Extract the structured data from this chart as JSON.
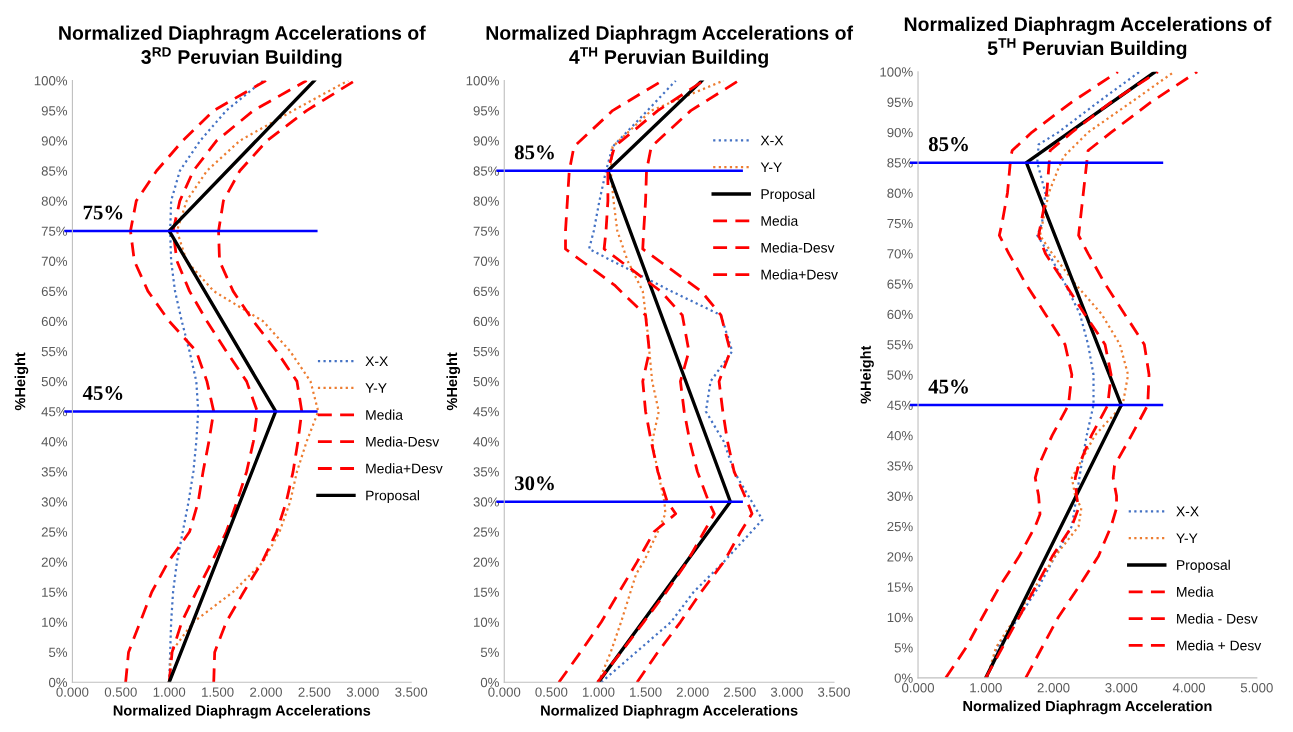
{
  "chart_data": [
    {
      "type": "line",
      "title": "Normalized Diaphragm Accelerations of\n3$^{RD}$ Peruvian Building",
      "xlabel": "Normalized Diaphragm Accelerations",
      "ylabel": "%Height",
      "xlim": [
        0,
        3.5
      ],
      "xticks": [
        {
          "value": 0,
          "label": "0.000"
        },
        {
          "value": 0.5,
          "label": "0.500"
        },
        {
          "value": 1,
          "label": "1.000"
        },
        {
          "value": 1.5,
          "label": "1.500"
        },
        {
          "value": 2,
          "label": "2.000"
        },
        {
          "value": 2.5,
          "label": "2.500"
        },
        {
          "value": 3,
          "label": "3.000"
        },
        {
          "value": 3.5,
          "label": "3.500"
        }
      ],
      "ylim": [
        0,
        100
      ],
      "yticks": [
        {
          "value": 0,
          "label": "0%"
        },
        {
          "value": 5,
          "label": "5%"
        },
        {
          "value": 10,
          "label": "10%"
        },
        {
          "value": 15,
          "label": "15%"
        },
        {
          "value": 20,
          "label": "20%"
        },
        {
          "value": 25,
          "label": "25%"
        },
        {
          "value": 30,
          "label": "30%"
        },
        {
          "value": 35,
          "label": "35%"
        },
        {
          "value": 40,
          "label": "40%"
        },
        {
          "value": 45,
          "label": "45%"
        },
        {
          "value": 50,
          "label": "50%"
        },
        {
          "value": 55,
          "label": "55%"
        },
        {
          "value": 60,
          "label": "60%"
        },
        {
          "value": 65,
          "label": "65%"
        },
        {
          "value": 70,
          "label": "70%"
        },
        {
          "value": 75,
          "label": "75%"
        },
        {
          "value": 80,
          "label": "80%"
        },
        {
          "value": 85,
          "label": "85%"
        },
        {
          "value": 90,
          "label": "90%"
        },
        {
          "value": 95,
          "label": "95%"
        },
        {
          "value": 100,
          "label": "100%"
        }
      ],
      "grid": false,
      "legend": "right",
      "series": [
        {
          "name": "X-X",
          "color": "#4472c4",
          "line_style": "dotted",
          "x": [
            1.0,
            1.01,
            1.02,
            1.04,
            1.08,
            1.14,
            1.2,
            1.25,
            1.28,
            1.3,
            1.28,
            1.21,
            1.13,
            1.06,
            1.02,
            1.01,
            1.02,
            1.11,
            1.32,
            1.59,
            1.97
          ],
          "values": [
            0,
            5,
            10,
            15,
            20,
            25,
            30,
            35,
            40,
            45,
            50,
            55,
            60,
            65,
            70,
            75,
            80,
            85,
            90,
            95,
            100
          ]
        },
        {
          "name": "Y-Y",
          "color": "#ed7d31",
          "line_style": "dotted",
          "x": [
            1.0,
            1.02,
            1.25,
            1.66,
            1.97,
            2.14,
            2.25,
            2.32,
            2.42,
            2.54,
            2.46,
            2.25,
            1.97,
            1.46,
            1.18,
            1.08,
            1.18,
            1.39,
            1.73,
            2.28,
            2.85
          ],
          "values": [
            0,
            5,
            10,
            15,
            20,
            25,
            30,
            35,
            40,
            45,
            50,
            55,
            60,
            65,
            70,
            75,
            80,
            85,
            90,
            95,
            100
          ]
        },
        {
          "name": "Media",
          "color": "#ff0000",
          "line_style": "dashed",
          "x": [
            1.0,
            1.03,
            1.13,
            1.28,
            1.44,
            1.59,
            1.7,
            1.8,
            1.87,
            1.91,
            1.8,
            1.59,
            1.39,
            1.21,
            1.08,
            1.04,
            1.11,
            1.25,
            1.49,
            1.87,
            2.42
          ],
          "values": [
            0,
            5,
            10,
            15,
            20,
            25,
            30,
            35,
            40,
            45,
            50,
            55,
            60,
            65,
            70,
            75,
            80,
            85,
            90,
            95,
            100
          ]
        },
        {
          "name": "Media-Desv",
          "color": "#ff0000",
          "line_style": "dashed",
          "x": [
            0.55,
            0.58,
            0.7,
            0.82,
            0.99,
            1.21,
            1.3,
            1.35,
            1.41,
            1.46,
            1.39,
            1.28,
            1.0,
            0.78,
            0.64,
            0.6,
            0.66,
            0.87,
            1.14,
            1.46,
            2.0
          ],
          "values": [
            0,
            5,
            10,
            15,
            20,
            25,
            30,
            35,
            40,
            45,
            50,
            55,
            60,
            65,
            70,
            75,
            80,
            85,
            90,
            95,
            100
          ]
        },
        {
          "name": "Media+Desv",
          "color": "#ff0000",
          "line_style": "dashed",
          "x": [
            1.46,
            1.47,
            1.59,
            1.77,
            1.96,
            2.11,
            2.21,
            2.28,
            2.33,
            2.37,
            2.32,
            2.11,
            1.87,
            1.66,
            1.52,
            1.51,
            1.56,
            1.73,
            2.01,
            2.42,
            2.92
          ],
          "values": [
            0,
            5,
            10,
            15,
            20,
            25,
            30,
            35,
            40,
            45,
            50,
            55,
            60,
            65,
            70,
            75,
            80,
            85,
            90,
            95,
            100
          ]
        },
        {
          "name": "Proposal",
          "color": "#000000",
          "line_style": "solid",
          "x": [
            1.0,
            2.1,
            1.0,
            2.5
          ],
          "values": [
            0,
            45,
            75,
            100
          ]
        }
      ],
      "ref_lines": [
        {
          "axis": "y",
          "value": 75,
          "label": "75%",
          "color": "#0000ff"
        },
        {
          "axis": "y",
          "value": 45,
          "label": "45%",
          "color": "#0000ff"
        }
      ]
    },
    {
      "type": "line",
      "title": "Normalized Diaphragm Accelerations of\n4$^{TH}$ Peruvian Building",
      "xlabel": "Normalized Diaphragm Accelerations",
      "ylabel": "%Height",
      "xlim": [
        0,
        3.5
      ],
      "xticks": [
        {
          "value": 0,
          "label": "0.000"
        },
        {
          "value": 0.5,
          "label": "0.500"
        },
        {
          "value": 1,
          "label": "1.000"
        },
        {
          "value": 1.5,
          "label": "1.500"
        },
        {
          "value": 2,
          "label": "2.000"
        },
        {
          "value": 2.5,
          "label": "2.500"
        },
        {
          "value": 3,
          "label": "3.000"
        },
        {
          "value": 3.5,
          "label": "3.500"
        }
      ],
      "ylim": [
        0,
        100
      ],
      "yticks": [
        {
          "value": 0,
          "label": "0%"
        },
        {
          "value": 5,
          "label": "5%"
        },
        {
          "value": 10,
          "label": "10%"
        },
        {
          "value": 15,
          "label": "15%"
        },
        {
          "value": 20,
          "label": "20%"
        },
        {
          "value": 25,
          "label": "25%"
        },
        {
          "value": 30,
          "label": "30%"
        },
        {
          "value": 35,
          "label": "35%"
        },
        {
          "value": 40,
          "label": "40%"
        },
        {
          "value": 45,
          "label": "45%"
        },
        {
          "value": 50,
          "label": "50%"
        },
        {
          "value": 55,
          "label": "55%"
        },
        {
          "value": 60,
          "label": "60%"
        },
        {
          "value": 65,
          "label": "65%"
        },
        {
          "value": 70,
          "label": "70%"
        },
        {
          "value": 75,
          "label": "75%"
        },
        {
          "value": 80,
          "label": "80%"
        },
        {
          "value": 85,
          "label": "85%"
        },
        {
          "value": 90,
          "label": "90%"
        },
        {
          "value": 95,
          "label": "95%"
        },
        {
          "value": 100,
          "label": "100%"
        }
      ],
      "grid": false,
      "legend": "top right",
      "series": [
        {
          "name": "X-X",
          "color": "#4472c4",
          "line_style": "dotted",
          "x": [
            1.03,
            1.4,
            1.77,
            2.01,
            2.33,
            2.74,
            2.44,
            2.33,
            2.14,
            2.19,
            2.42,
            2.3,
            1.77,
            0.9,
            0.95,
            1.01,
            1.08,
            1.15,
            1.52,
            1.82
          ],
          "values": [
            0,
            5,
            10,
            15,
            20,
            27,
            35,
            40,
            45,
            50,
            55,
            61,
            65,
            72,
            75,
            80,
            85,
            89,
            95,
            100
          ]
        },
        {
          "name": "Y-Y",
          "color": "#ed7d31",
          "line_style": "dotted",
          "x": [
            1.0,
            1.13,
            1.24,
            1.34,
            1.4,
            1.48,
            1.63,
            1.71,
            1.7,
            1.63,
            1.57,
            1.64,
            1.57,
            1.54,
            1.51,
            1.47,
            1.31,
            1.2,
            1.16,
            1.13,
            1.15,
            1.56,
            2.33
          ],
          "values": [
            0,
            5,
            10,
            15,
            18,
            20,
            25,
            28,
            30,
            35,
            40,
            45,
            50,
            55,
            60,
            65,
            70,
            75,
            80,
            85,
            89,
            95,
            100
          ]
        },
        {
          "name": "Proposal",
          "color": "#000000",
          "line_style": "solid",
          "x": [
            1.0,
            2.4,
            1.1,
            2.1
          ],
          "values": [
            0,
            30,
            85,
            100
          ]
        },
        {
          "name": "Media",
          "color": "#ff0000",
          "line_style": "dashed",
          "x": [
            0.99,
            1.24,
            1.48,
            1.72,
            1.94,
            2.12,
            2.23,
            2.17,
            2.05,
            1.97,
            1.91,
            1.87,
            1.96,
            1.89,
            1.66,
            1.06,
            1.08,
            1.1,
            1.1,
            1.17,
            1.63,
            2.12
          ],
          "values": [
            0,
            5,
            10,
            15,
            20,
            25,
            28,
            30,
            35,
            40,
            45,
            50,
            55,
            61,
            65,
            72,
            75,
            80,
            85,
            89,
            95,
            100
          ]
        },
        {
          "name": "Media-Desv",
          "color": "#ff0000",
          "line_style": "dashed",
          "x": [
            0.58,
            0.81,
            1.03,
            1.22,
            1.41,
            1.59,
            1.82,
            1.73,
            1.63,
            1.56,
            1.5,
            1.47,
            1.54,
            1.5,
            1.17,
            0.65,
            0.65,
            0.67,
            0.69,
            0.74,
            1.15,
            1.68
          ],
          "values": [
            0,
            5,
            10,
            15,
            20,
            25,
            28,
            30,
            35,
            40,
            45,
            50,
            55,
            61,
            66,
            72,
            75,
            80,
            85,
            89,
            95,
            100
          ]
        },
        {
          "name": "Media+Desv",
          "color": "#ff0000",
          "line_style": "dashed",
          "x": [
            1.41,
            1.63,
            1.87,
            2.09,
            2.33,
            2.51,
            2.63,
            2.58,
            2.44,
            2.37,
            2.32,
            2.28,
            2.4,
            2.3,
            2.09,
            1.47,
            1.48,
            1.5,
            1.51,
            1.56,
            1.98,
            2.49
          ],
          "values": [
            0,
            5,
            10,
            15,
            20,
            25,
            28,
            30,
            35,
            40,
            45,
            50,
            55,
            61,
            65,
            72,
            75,
            80,
            85,
            89,
            95,
            100
          ]
        }
      ],
      "ref_lines": [
        {
          "axis": "y",
          "value": 85,
          "label": "85%",
          "color": "#0000ff"
        },
        {
          "axis": "y",
          "value": 30,
          "label": "30%",
          "color": "#0000ff"
        }
      ]
    },
    {
      "type": "line",
      "title": "Normalized Diaphragm Accelerations of\n5$^{TH}$ Peruvian Building",
      "xlabel": "Normalized Diaphragm Acceleration",
      "ylabel": "%Height",
      "xlim": [
        0,
        5
      ],
      "xticks": [
        {
          "value": 0,
          "label": "0.000"
        },
        {
          "value": 1,
          "label": "1.000"
        },
        {
          "value": 2,
          "label": "2.000"
        },
        {
          "value": 3,
          "label": "3.000"
        },
        {
          "value": 4,
          "label": "4.000"
        },
        {
          "value": 5,
          "label": "5.000"
        }
      ],
      "ylim": [
        0,
        100
      ],
      "yticks": [
        {
          "value": 0,
          "label": "0%"
        },
        {
          "value": 5,
          "label": "5%"
        },
        {
          "value": 10,
          "label": "10%"
        },
        {
          "value": 15,
          "label": "15%"
        },
        {
          "value": 20,
          "label": "20%"
        },
        {
          "value": 25,
          "label": "25%"
        },
        {
          "value": 30,
          "label": "30%"
        },
        {
          "value": 35,
          "label": "35%"
        },
        {
          "value": 40,
          "label": "40%"
        },
        {
          "value": 45,
          "label": "45%"
        },
        {
          "value": 50,
          "label": "50%"
        },
        {
          "value": 55,
          "label": "55%"
        },
        {
          "value": 60,
          "label": "60%"
        },
        {
          "value": 65,
          "label": "65%"
        },
        {
          "value": 70,
          "label": "70%"
        },
        {
          "value": 75,
          "label": "75%"
        },
        {
          "value": 80,
          "label": "80%"
        },
        {
          "value": 85,
          "label": "85%"
        },
        {
          "value": 90,
          "label": "90%"
        },
        {
          "value": 95,
          "label": "95%"
        },
        {
          "value": 100,
          "label": "100%"
        }
      ],
      "grid": false,
      "legend": "bottom right",
      "series": [
        {
          "name": "X-X",
          "color": "#4472c4",
          "line_style": "dotted",
          "x": [
            1.02,
            1.17,
            1.49,
            1.78,
            2.02,
            2.27,
            2.34,
            2.41,
            2.49,
            2.59,
            2.59,
            2.51,
            2.39,
            2.17,
            1.93,
            1.76,
            1.83,
            1.88,
            1.76,
            1.78,
            2.07,
            2.66,
            3.27
          ],
          "values": [
            0,
            5,
            10,
            15,
            20,
            25,
            30,
            35,
            40,
            45,
            50,
            55,
            60,
            65,
            70,
            73,
            75,
            80,
            85,
            88,
            90,
            95,
            100
          ]
        },
        {
          "name": "Y-Y",
          "color": "#ed7d31",
          "line_style": "dotted",
          "x": [
            1.02,
            1.15,
            1.44,
            1.73,
            2.02,
            2.37,
            2.41,
            2.32,
            2.27,
            2.37,
            2.61,
            3.02,
            3.1,
            2.98,
            2.71,
            2.32,
            1.98,
            1.8,
            1.93,
            2.07,
            2.15,
            2.51,
            3.15,
            3.78
          ],
          "values": [
            0,
            5,
            10,
            15,
            20,
            25,
            28,
            30,
            33,
            35,
            40,
            45,
            50,
            55,
            60,
            65,
            70,
            73,
            80,
            84,
            86,
            90,
            95,
            100
          ]
        },
        {
          "name": "Proposal",
          "color": "#000000",
          "line_style": "solid",
          "x": [
            1.0,
            3.0,
            1.6,
            3.5
          ],
          "values": [
            0,
            45,
            85,
            100
          ]
        },
        {
          "name": "Media",
          "color": "#ff0000",
          "line_style": "dashed",
          "x": [
            1.0,
            1.49,
            1.98,
            2.27,
            2.37,
            2.34,
            2.32,
            2.37,
            2.56,
            2.8,
            2.85,
            2.76,
            2.46,
            2.17,
            1.88,
            1.78,
            1.9,
            1.95,
            2.27,
            2.85,
            3.54
          ],
          "values": [
            0,
            10,
            20,
            25,
            28,
            30,
            33,
            35,
            40,
            45,
            50,
            55,
            60,
            65,
            70,
            73,
            80,
            87,
            90,
            95,
            100
          ]
        },
        {
          "name": "Media - Desv",
          "color": "#ff0000",
          "line_style": "dashed",
          "x": [
            0.41,
            0.71,
            0.95,
            1.2,
            1.49,
            1.73,
            1.8,
            1.78,
            1.73,
            1.78,
            1.98,
            2.22,
            2.27,
            2.17,
            1.88,
            1.59,
            1.34,
            1.2,
            1.24,
            1.32,
            1.37,
            1.39,
            1.68,
            2.27,
            2.95
          ],
          "values": [
            0,
            5,
            10,
            15,
            20,
            25,
            27,
            30,
            33,
            35,
            40,
            45,
            50,
            55,
            60,
            65,
            70,
            73,
            75,
            80,
            86,
            87,
            90,
            95,
            100
          ]
        },
        {
          "name": "Media + Desv",
          "color": "#ff0000",
          "line_style": "dashed",
          "x": [
            1.59,
            1.83,
            2.07,
            2.37,
            2.66,
            2.85,
            2.93,
            2.93,
            2.88,
            2.9,
            3.15,
            3.39,
            3.41,
            3.34,
            3.05,
            2.76,
            2.51,
            2.37,
            2.44,
            2.51,
            2.85,
            3.44,
            4.12
          ],
          "values": [
            0,
            5,
            10,
            15,
            20,
            25,
            28,
            30,
            33,
            35,
            40,
            45,
            50,
            55,
            60,
            65,
            70,
            73,
            80,
            87,
            90,
            95,
            100
          ]
        }
      ],
      "ref_lines": [
        {
          "axis": "y",
          "value": 85,
          "label": "85%",
          "color": "#0000ff"
        },
        {
          "axis": "y",
          "value": 45,
          "label": "45%",
          "color": "#0000ff"
        }
      ]
    }
  ]
}
